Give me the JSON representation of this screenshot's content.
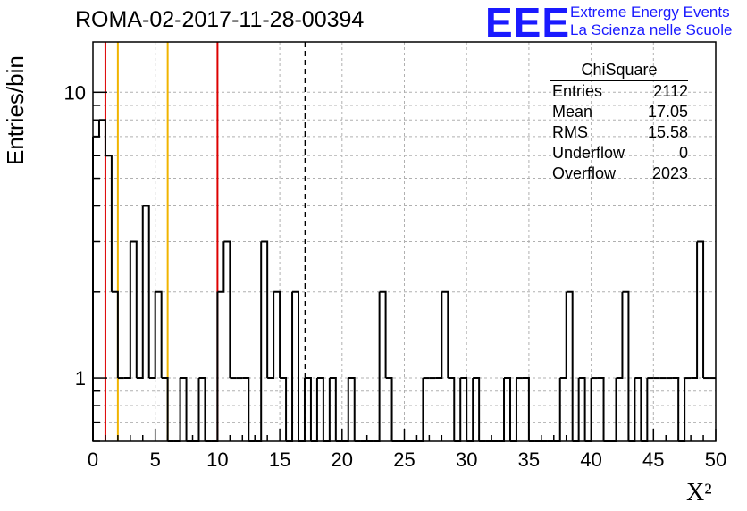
{
  "header": {
    "title": "ROMA-02-2017-11-28-00394"
  },
  "logo": {
    "text": "EEE",
    "line1": "Extreme Energy Events",
    "line2": "La Scienza nelle Scuole",
    "color": "#1a1aff"
  },
  "stats_box": {
    "title": "ChiSquare",
    "rows": [
      {
        "label": "Entries",
        "value": "2112"
      },
      {
        "label": "Mean",
        "value": "17.05"
      },
      {
        "label": "RMS",
        "value": "15.58"
      },
      {
        "label": "Underflow",
        "value": "0"
      },
      {
        "label": "Overflow",
        "value": "2023"
      }
    ]
  },
  "axes": {
    "ylabel": "Entries/bin",
    "xlabel": "X²"
  },
  "chart_data": {
    "type": "bar",
    "histogram": true,
    "title": "ROMA-02-2017-11-28-00394",
    "xlabel": "X²",
    "ylabel": "Entries/bin",
    "xlim": [
      0,
      50
    ],
    "ylim": [
      0.6,
      15
    ],
    "yscale": "log",
    "grid": true,
    "bin_width": 0.5,
    "x_ticks": [
      0,
      5,
      10,
      15,
      20,
      25,
      30,
      35,
      40,
      45,
      50
    ],
    "y_ticks": [
      1,
      10
    ],
    "counts": [
      7,
      8,
      6,
      2,
      1,
      1,
      3,
      1,
      4,
      1,
      2,
      1,
      0,
      0,
      1,
      0,
      0,
      1,
      0,
      0,
      2,
      3,
      1,
      1,
      1,
      0,
      0,
      3,
      1,
      2,
      1,
      0,
      2,
      0,
      1,
      0,
      1,
      0,
      1,
      0,
      0,
      1,
      0,
      0,
      0,
      0,
      2,
      1,
      0,
      0,
      0,
      0,
      0,
      1,
      1,
      1,
      2,
      1,
      0,
      1,
      0,
      1,
      0,
      0,
      0,
      0,
      1,
      0,
      1,
      1,
      0,
      0,
      0,
      0,
      0,
      1,
      2,
      0,
      1,
      0,
      1,
      1,
      0,
      0,
      1,
      2,
      0,
      1,
      0,
      1,
      1,
      1,
      1,
      1,
      0,
      1,
      1,
      3,
      1,
      1
    ],
    "mean": 17.05,
    "vertical_lines": [
      {
        "x": 1,
        "color": "#dd0000",
        "style": "solid"
      },
      {
        "x": 2,
        "color": "#f0b400",
        "style": "solid"
      },
      {
        "x": 6,
        "color": "#f0b400",
        "style": "solid"
      },
      {
        "x": 10,
        "color": "#dd0000",
        "style": "solid"
      },
      {
        "x": 17.05,
        "color": "#000000",
        "style": "dashed"
      }
    ]
  }
}
